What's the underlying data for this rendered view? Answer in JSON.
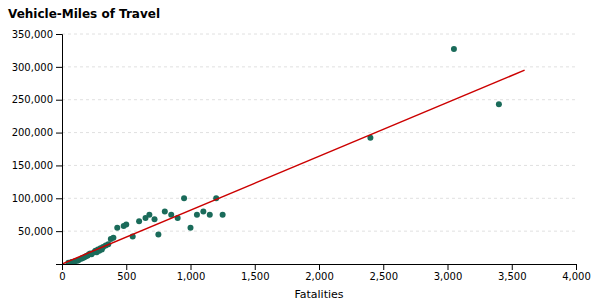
{
  "chart_data": {
    "type": "scatter",
    "xlabel": "Fatalities",
    "ylabel": "Vehicle-Miles of Travel",
    "series": [
      {
        "type": "scatter",
        "color": "#1a6b5a",
        "x": [
          50,
          75,
          100,
          120,
          130,
          150,
          160,
          170,
          180,
          190,
          200,
          210,
          220,
          230,
          250,
          260,
          270,
          280,
          290,
          300,
          310,
          320,
          340,
          360,
          380,
          400,
          430,
          480,
          500,
          550,
          600,
          650,
          680,
          720,
          750,
          800,
          850,
          900,
          950,
          1000,
          1050,
          1100,
          1150,
          1200,
          1250,
          2400,
          3050,
          3400
        ],
        "values": [
          2000,
          3000,
          4000,
          5000,
          6000,
          8000,
          9000,
          10000,
          11000,
          12000,
          13000,
          15000,
          16000,
          15000,
          18000,
          20000,
          18000,
          22000,
          20000,
          24000,
          22000,
          26000,
          28000,
          30000,
          38000,
          40000,
          55000,
          58000,
          60000,
          42000,
          65000,
          70000,
          75000,
          68000,
          45000,
          80000,
          75000,
          70000,
          100000,
          55000,
          75000,
          80000,
          75000,
          100000,
          75000,
          192000,
          327000,
          243000
        ]
      },
      {
        "type": "line",
        "color": "#cc0000",
        "x": [
          0,
          3600
        ],
        "values": [
          0,
          295000
        ]
      }
    ],
    "xlim": [
      0,
      4000
    ],
    "ylim": [
      0,
      350000
    ],
    "xticks": [
      0,
      500,
      {
        "value": 1000,
        "label": "1,000"
      },
      {
        "value": 1500,
        "label": "1,500"
      },
      {
        "value": 2000,
        "label": "2,000"
      },
      {
        "value": 2500,
        "label": "2,500"
      },
      {
        "value": 3000,
        "label": "3,000"
      },
      {
        "value": 3500,
        "label": "3,500"
      },
      {
        "value": 4000,
        "label": "4,000"
      }
    ],
    "yticks": [
      {
        "value": 50000,
        "label": "50,000"
      },
      {
        "value": 100000,
        "label": "100,000"
      },
      {
        "value": 150000,
        "label": "150,000"
      },
      {
        "value": 200000,
        "label": "200,000"
      },
      {
        "value": 250000,
        "label": "250,000"
      },
      {
        "value": 300000,
        "label": "300,000"
      },
      {
        "value": 350000,
        "label": "350,000"
      }
    ],
    "grid": true
  }
}
